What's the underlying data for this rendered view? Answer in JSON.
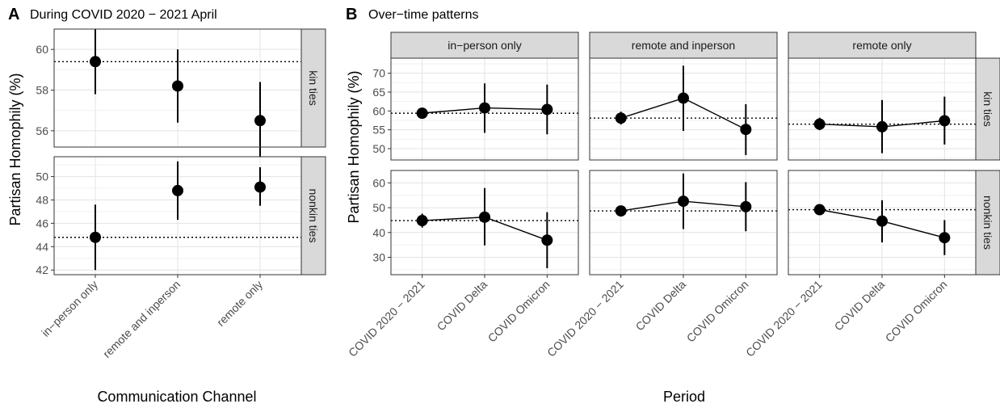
{
  "figure": {
    "panel_a": {
      "tag": "A",
      "title": "During COVID 2020 − 2021 April"
    },
    "panel_b": {
      "tag": "B",
      "title": "Over−time patterns"
    }
  },
  "chart_data": [
    {
      "type": "scatter",
      "id": "A",
      "title": "During COVID 2020 − 2021 April",
      "xlabel": "Communication Channel",
      "ylabel": "Partisan Homophily (%)",
      "categories": [
        "in−person only",
        "remote and inperson",
        "remote only"
      ],
      "error_bars": true,
      "reference_line": "dotted horizontal",
      "rows": [
        {
          "facet": "kin ties",
          "ylim": [
            55.2,
            61.0
          ],
          "yticks": [
            56,
            58,
            60
          ],
          "reference": 59.4,
          "points": [
            {
              "category": "in−person only",
              "y": 59.4,
              "lo": 57.8,
              "hi": 61.0
            },
            {
              "category": "remote and inperson",
              "y": 58.2,
              "lo": 56.4,
              "hi": 60.0
            },
            {
              "category": "remote only",
              "y": 56.5,
              "lo": 54.7,
              "hi": 58.4
            }
          ]
        },
        {
          "facet": "nonkin ties",
          "ylim": [
            41.6,
            51.7
          ],
          "yticks": [
            42,
            44,
            46,
            48,
            50
          ],
          "reference": 44.8,
          "points": [
            {
              "category": "in−person only",
              "y": 44.8,
              "lo": 42.0,
              "hi": 47.6
            },
            {
              "category": "remote and inperson",
              "y": 48.8,
              "lo": 46.3,
              "hi": 51.3
            },
            {
              "category": "remote only",
              "y": 49.1,
              "lo": 47.5,
              "hi": 50.8
            }
          ]
        }
      ]
    },
    {
      "type": "line",
      "id": "B",
      "title": "Over−time patterns",
      "xlabel": "Period",
      "ylabel": "Partisan Homophily (%)",
      "x": [
        "COVID 2020 − 2021",
        "COVID Delta",
        "COVID Omicron"
      ],
      "columns": [
        "in−person only",
        "remote and inperson",
        "remote only"
      ],
      "error_bars": true,
      "reference_line": "dotted horizontal",
      "rows": [
        {
          "facet": "kin ties",
          "ylim": [
            47.0,
            74.0
          ],
          "yticks": [
            50,
            55,
            60,
            65,
            70
          ],
          "panels": [
            {
              "column": "in−person only",
              "reference": 59.4,
              "values": [
                59.4,
                60.8,
                60.4
              ],
              "lo": [
                58.0,
                54.2,
                53.8
              ],
              "hi": [
                60.8,
                67.3,
                67.0
              ]
            },
            {
              "column": "remote and inperson",
              "reference": 58.1,
              "values": [
                58.1,
                63.4,
                55.1
              ],
              "lo": [
                56.4,
                54.7,
                48.3
              ],
              "hi": [
                59.8,
                72.0,
                61.8
              ]
            },
            {
              "column": "remote only",
              "reference": 56.5,
              "values": [
                56.5,
                55.8,
                57.4
              ],
              "lo": [
                54.9,
                48.8,
                51.1
              ],
              "hi": [
                58.2,
                62.9,
                63.8
              ]
            }
          ]
        },
        {
          "facet": "nonkin ties",
          "ylim": [
            23.0,
            65.0
          ],
          "yticks": [
            30,
            40,
            50,
            60
          ],
          "panels": [
            {
              "column": "in−person only",
              "reference": 44.8,
              "values": [
                44.8,
                46.2,
                36.9
              ],
              "lo": [
                42.0,
                34.8,
                25.6
              ],
              "hi": [
                47.6,
                57.9,
                48.2
              ]
            },
            {
              "column": "remote and inperson",
              "reference": 48.7,
              "values": [
                48.7,
                52.6,
                50.4
              ],
              "lo": [
                46.9,
                41.4,
                40.5
              ],
              "hi": [
                50.6,
                63.8,
                60.3
              ]
            },
            {
              "column": "remote only",
              "reference": 49.2,
              "values": [
                49.2,
                44.6,
                37.9
              ],
              "lo": [
                47.6,
                36.0,
                30.9
              ],
              "hi": [
                50.8,
                53.0,
                45.0
              ]
            }
          ]
        }
      ]
    }
  ]
}
